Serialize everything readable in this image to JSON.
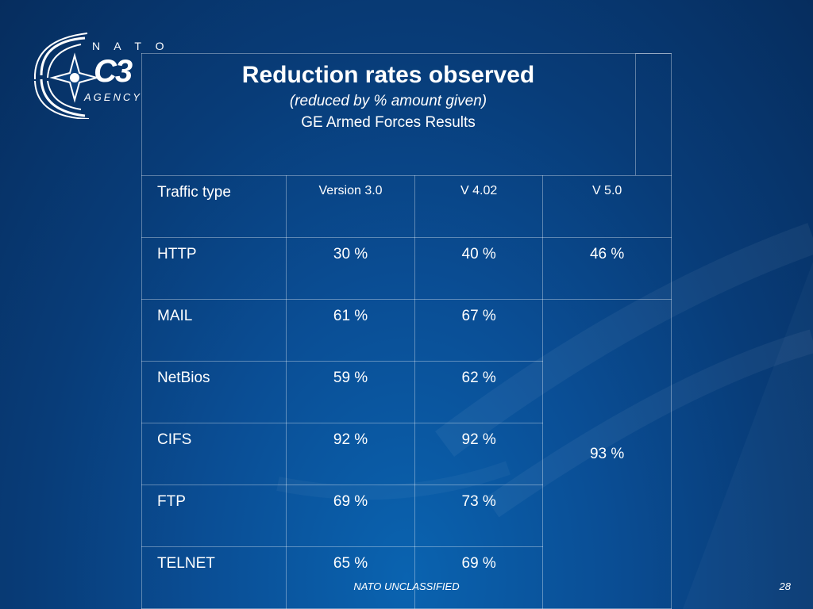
{
  "slide": {
    "title": "Reduction   rates  observed",
    "subtitle": "(reduced by   %   amount  given)",
    "subtitle2": "GE   Armed  Forces  Results"
  },
  "logo": {
    "top_text": "N A T O",
    "main_text": "C3",
    "bottom_text": "AGENCY"
  },
  "table": {
    "headers": [
      "Traffic  type",
      "Version  3.0",
      "V 4.02",
      "V  5.0"
    ],
    "rows": [
      {
        "type": "HTTP",
        "v30": "30 %",
        "v402": "40 %",
        "v50": "46 %"
      },
      {
        "type": "MAIL",
        "v30": "61 %",
        "v402": "67 %"
      },
      {
        "type": "NetBios",
        "v30": "59 %",
        "v402": "62 %"
      },
      {
        "type": "CIFS",
        "v30": "92 %",
        "v402": "92 %"
      },
      {
        "type": "FTP",
        "v30": "69 %",
        "v402": "73 %"
      },
      {
        "type": "TELNET",
        "v30": "65 %",
        "v402": "69 %"
      }
    ],
    "v50_merged": "93 %"
  },
  "footer": {
    "classification": "NATO UNCLASSIFIED",
    "page_number": "28"
  }
}
